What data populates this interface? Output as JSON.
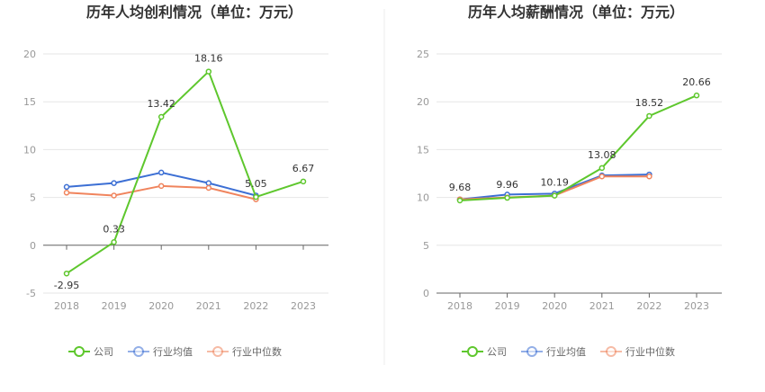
{
  "chart_data": [
    {
      "type": "line",
      "title": "历年人均创利情况（单位：万元）",
      "categories": [
        "2018",
        "2019",
        "2020",
        "2021",
        "2022",
        "2023"
      ],
      "ylim": [
        -5,
        20
      ],
      "yticks": [
        -5,
        0,
        5,
        10,
        15,
        20
      ],
      "grid": true,
      "legend_position": "bottom",
      "series": [
        {
          "name": "公司",
          "color": "#5ec72d",
          "values": [
            -2.95,
            0.33,
            13.42,
            18.16,
            5.05,
            6.67
          ],
          "labels": [
            "-2.95",
            "0.33",
            "13.42",
            "18.16",
            "5.05",
            "6.67"
          ]
        },
        {
          "name": "行业均值",
          "color": "#3c6fd4",
          "values": [
            6.1,
            6.5,
            7.6,
            6.5,
            5.2,
            null
          ],
          "labels": []
        },
        {
          "name": "行业中位数",
          "color": "#f0845d",
          "values": [
            5.5,
            5.2,
            6.2,
            6.0,
            4.8,
            null
          ],
          "labels": []
        }
      ]
    },
    {
      "type": "line",
      "title": "历年人均薪酬情况（单位：万元）",
      "categories": [
        "2018",
        "2019",
        "2020",
        "2021",
        "2022",
        "2023"
      ],
      "ylim": [
        0,
        25
      ],
      "yticks": [
        0,
        5,
        10,
        15,
        20,
        25
      ],
      "grid": true,
      "legend_position": "bottom",
      "series": [
        {
          "name": "公司",
          "color": "#5ec72d",
          "values": [
            9.68,
            9.96,
            10.19,
            13.08,
            18.52,
            20.66
          ],
          "labels": [
            "9.68",
            "9.96",
            "10.19",
            "13.08",
            "18.52",
            "20.66"
          ]
        },
        {
          "name": "行业均值",
          "color": "#3c6fd4",
          "values": [
            9.8,
            10.3,
            10.4,
            12.3,
            12.4,
            null
          ],
          "labels": []
        },
        {
          "name": "行业中位数",
          "color": "#f0845d",
          "values": [
            9.8,
            10.0,
            10.2,
            12.2,
            12.2,
            null
          ],
          "labels": []
        }
      ]
    }
  ]
}
